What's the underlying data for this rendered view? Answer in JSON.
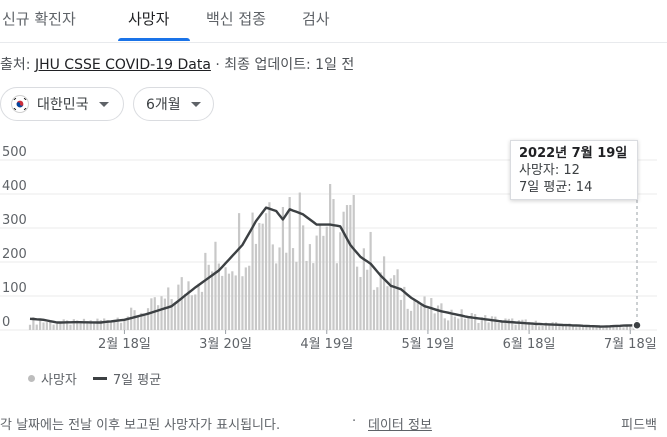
{
  "tabs": [
    "신규 확진자",
    "사망자",
    "백신 접종",
    "검사"
  ],
  "active_tab": 1,
  "source": {
    "prefix": "출처: ",
    "link": "JHU CSSE COVID-19 Data",
    "suffix": " · 최종 업데이트: 1일 전"
  },
  "filters": {
    "region": "대한민국",
    "period": "6개월"
  },
  "tooltip": {
    "date": "2022년 7월 19일",
    "deaths": "사망자: 12",
    "avg": "7일 평균: 14"
  },
  "legend": {
    "deaths": "사망자",
    "avg": "7일 평균"
  },
  "footer": {
    "note": "각 날짜에는 전날 이후 보고된 사망자가 표시됩니다.",
    "separator": "·",
    "info": "데이터 정보",
    "feedback": "피드백"
  },
  "colors": {
    "accent": "#1a73e8",
    "bar": "#c8c8c8",
    "line": "#3c4043"
  },
  "chart_data": {
    "type": "bar",
    "y_ticks": [
      0,
      100,
      200,
      300,
      400,
      500
    ],
    "x_ticks": [
      "2월 18일",
      "3월 20일",
      "4월 19일",
      "5월 19일",
      "6월 18일",
      "7월 18일"
    ],
    "ylim": [
      0,
      500
    ],
    "days": 181,
    "series": [
      {
        "name": "사망자",
        "type": "bar",
        "keypoints": [
          [
            0,
            28
          ],
          [
            8,
            22
          ],
          [
            14,
            22
          ],
          [
            21,
            28
          ],
          [
            28,
            40
          ],
          [
            35,
            60
          ],
          [
            42,
            95
          ],
          [
            49,
            160
          ],
          [
            56,
            200
          ],
          [
            63,
            280
          ],
          [
            67,
            330
          ],
          [
            70,
            390
          ],
          [
            73,
            340
          ],
          [
            76,
            330
          ],
          [
            79,
            340
          ],
          [
            84,
            310
          ],
          [
            88,
            320
          ],
          [
            92,
            280
          ],
          [
            95,
            300
          ],
          [
            98,
            260
          ],
          [
            102,
            190
          ],
          [
            106,
            150
          ],
          [
            110,
            120
          ],
          [
            116,
            75
          ],
          [
            122,
            55
          ],
          [
            130,
            40
          ],
          [
            140,
            28
          ],
          [
            150,
            20
          ],
          [
            160,
            14
          ],
          [
            170,
            10
          ],
          [
            180,
            12
          ]
        ]
      },
      {
        "name": "7일 평균",
        "type": "line",
        "keypoints": [
          [
            0,
            33
          ],
          [
            4,
            30
          ],
          [
            8,
            22
          ],
          [
            14,
            23
          ],
          [
            21,
            22
          ],
          [
            28,
            30
          ],
          [
            35,
            48
          ],
          [
            42,
            70
          ],
          [
            49,
            125
          ],
          [
            56,
            175
          ],
          [
            63,
            250
          ],
          [
            67,
            320
          ],
          [
            70,
            360
          ],
          [
            73,
            350
          ],
          [
            75,
            325
          ],
          [
            77,
            355
          ],
          [
            81,
            340
          ],
          [
            85,
            310
          ],
          [
            89,
            310
          ],
          [
            92,
            305
          ],
          [
            95,
            250
          ],
          [
            98,
            215
          ],
          [
            101,
            195
          ],
          [
            104,
            160
          ],
          [
            107,
            130
          ],
          [
            110,
            120
          ],
          [
            113,
            95
          ],
          [
            117,
            70
          ],
          [
            122,
            55
          ],
          [
            130,
            38
          ],
          [
            140,
            25
          ],
          [
            150,
            18
          ],
          [
            160,
            14
          ],
          [
            170,
            10
          ],
          [
            176,
            13
          ],
          [
            180,
            14
          ]
        ]
      }
    ]
  }
}
